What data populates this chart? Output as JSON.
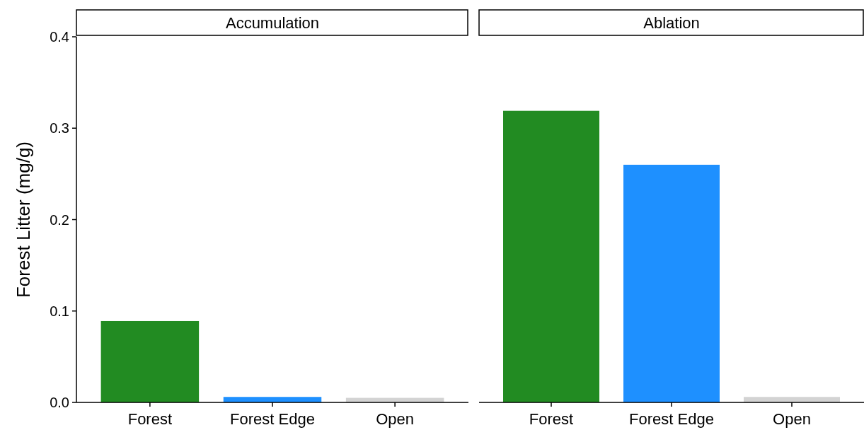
{
  "chart_data": [
    {
      "type": "bar",
      "title": "Accumulation",
      "ylabel": "Forest Litter (mg/g)",
      "categories": [
        "Forest",
        "Forest Edge",
        "Open"
      ],
      "values": [
        0.089,
        0.006,
        0.005
      ],
      "colors": [
        "#228b22",
        "#1e90ff",
        "#d3d3d3"
      ],
      "ylim": [
        0,
        0.4
      ],
      "yticks": [
        {
          "value": 0,
          "label": "0.0"
        },
        0.1,
        0.2,
        0.3,
        0.4
      ]
    },
    {
      "type": "bar",
      "title": "Ablation",
      "categories": [
        "Forest",
        "Forest Edge",
        "Open"
      ],
      "values": [
        0.319,
        0.26,
        0.006
      ],
      "colors": [
        "#228b22",
        "#1e90ff",
        "#d3d3d3"
      ],
      "ylim": [
        0,
        0.4
      ],
      "tick_labels": "x"
    }
  ]
}
